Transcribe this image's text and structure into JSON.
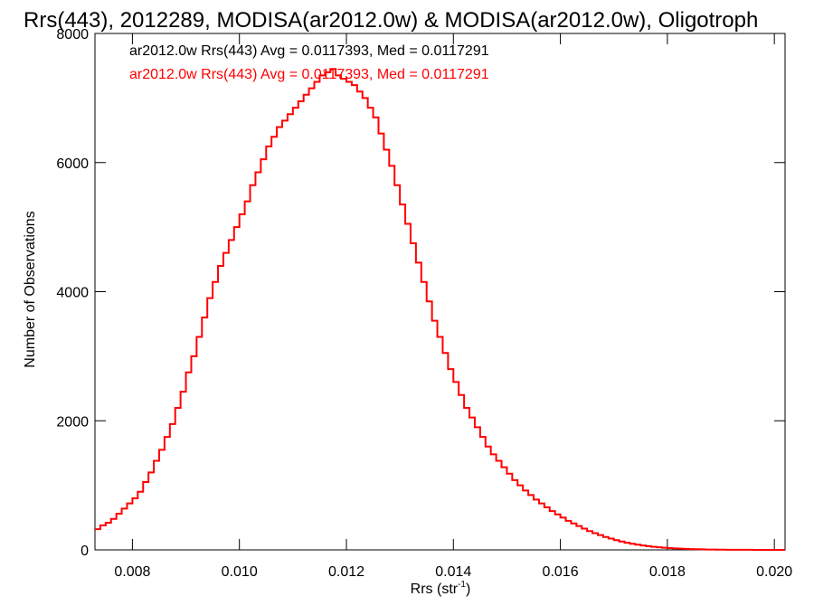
{
  "chart_data": {
    "type": "line",
    "title": "Rrs(443), 2012289, MODISA(ar2012.0w) & MODISA(ar2012.0w), Oligotroph",
    "xlabel_main": "Rrs (str",
    "xlabel_sup": "-1",
    "xlabel_end": ")",
    "ylabel": "Number of Observations",
    "xlim": [
      0.0073,
      0.0202
    ],
    "ylim": [
      0,
      8000
    ],
    "x_ticks": [
      0.008,
      0.01,
      0.012,
      0.014,
      0.016,
      0.018,
      0.02
    ],
    "x_tick_labels": [
      "0.008",
      "0.010",
      "0.012",
      "0.014",
      "0.016",
      "0.018",
      "0.020"
    ],
    "y_ticks": [
      0,
      2000,
      4000,
      6000,
      8000
    ],
    "y_tick_labels": [
      "0",
      "2000",
      "4000",
      "6000",
      "8000"
    ],
    "grid": false,
    "legend": [
      {
        "text": "ar2012.0w Rrs(443) Avg = 0.0117393, Med = 0.0117291",
        "color": "#000000"
      },
      {
        "text": "ar2012.0w Rrs(443) Avg = 0.0117393, Med = 0.0117291",
        "color": "#ff0000"
      }
    ],
    "series": [
      {
        "color": "#ff0000",
        "x": [
          0.0073,
          0.0074,
          0.0075,
          0.0076,
          0.0077,
          0.0078,
          0.0079,
          0.008,
          0.0081,
          0.0082,
          0.0083,
          0.0084,
          0.0085,
          0.0086,
          0.0087,
          0.0088,
          0.0089,
          0.009,
          0.0091,
          0.0092,
          0.0093,
          0.0094,
          0.0095,
          0.0096,
          0.0097,
          0.0098,
          0.0099,
          0.01,
          0.0101,
          0.0102,
          0.0103,
          0.0104,
          0.0105,
          0.0106,
          0.0107,
          0.0108,
          0.0109,
          0.011,
          0.0111,
          0.0112,
          0.0113,
          0.0114,
          0.0115,
          0.0116,
          0.0117,
          0.0118,
          0.0119,
          0.012,
          0.0121,
          0.0122,
          0.0123,
          0.0124,
          0.0125,
          0.0126,
          0.0127,
          0.0128,
          0.0129,
          0.013,
          0.0131,
          0.0132,
          0.0133,
          0.0134,
          0.0135,
          0.0136,
          0.0137,
          0.0138,
          0.0139,
          0.014,
          0.0141,
          0.0142,
          0.0143,
          0.0144,
          0.0145,
          0.0146,
          0.0147,
          0.0148,
          0.0149,
          0.015,
          0.0151,
          0.0152,
          0.0153,
          0.0154,
          0.0155,
          0.0156,
          0.0157,
          0.0158,
          0.0159,
          0.016,
          0.0161,
          0.0162,
          0.0163,
          0.0164,
          0.0165,
          0.0166,
          0.0167,
          0.0168,
          0.0169,
          0.017,
          0.0171,
          0.0172,
          0.0173,
          0.0174,
          0.0175,
          0.0176,
          0.0177,
          0.0178,
          0.0179,
          0.018,
          0.0181,
          0.0182,
          0.0183,
          0.0184,
          0.0185,
          0.0186,
          0.0187,
          0.0188,
          0.0189,
          0.019,
          0.0191,
          0.0192,
          0.0193,
          0.0194,
          0.0195,
          0.0196,
          0.0197,
          0.0198,
          0.0199,
          0.02,
          0.0201
        ],
        "values": [
          320,
          380,
          420,
          480,
          560,
          640,
          720,
          800,
          900,
          1050,
          1200,
          1380,
          1550,
          1750,
          1950,
          2200,
          2450,
          2750,
          3000,
          3300,
          3600,
          3900,
          4150,
          4400,
          4600,
          4800,
          5000,
          5200,
          5400,
          5650,
          5850,
          6050,
          6250,
          6400,
          6550,
          6650,
          6750,
          6850,
          6950,
          7050,
          7150,
          7250,
          7350,
          7400,
          7450,
          7350,
          7300,
          7250,
          7200,
          7100,
          7000,
          6850,
          6700,
          6450,
          6200,
          5950,
          5650,
          5350,
          5050,
          4750,
          4450,
          4150,
          3850,
          3550,
          3300,
          3050,
          2800,
          2600,
          2400,
          2200,
          2050,
          1900,
          1750,
          1600,
          1480,
          1380,
          1280,
          1180,
          1080,
          1000,
          920,
          850,
          780,
          720,
          660,
          600,
          550,
          500,
          450,
          410,
          370,
          330,
          290,
          260,
          230,
          200,
          175,
          150,
          130,
          110,
          95,
          80,
          68,
          58,
          48,
          40,
          34,
          28,
          23,
          19,
          15,
          12,
          10,
          8,
          6,
          5,
          4,
          3,
          2,
          2,
          1,
          1,
          1,
          0,
          0,
          0,
          0,
          0,
          0
        ]
      }
    ]
  }
}
